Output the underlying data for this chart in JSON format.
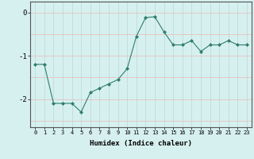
{
  "x": [
    0,
    1,
    2,
    3,
    4,
    5,
    6,
    7,
    8,
    9,
    10,
    11,
    12,
    13,
    14,
    15,
    16,
    17,
    18,
    19,
    20,
    21,
    22,
    23
  ],
  "y": [
    -1.2,
    -1.2,
    -2.1,
    -2.1,
    -2.1,
    -2.3,
    -1.85,
    -1.75,
    -1.65,
    -1.55,
    -1.3,
    -0.55,
    -0.12,
    -0.1,
    -0.45,
    -0.75,
    -0.75,
    -0.65,
    -0.9,
    -0.75,
    -0.75,
    -0.65,
    -0.75,
    -0.75
  ],
  "xlabel": "Humidex (Indice chaleur)",
  "xlim": [
    -0.5,
    23.5
  ],
  "ylim": [
    -2.65,
    0.25
  ],
  "yticks": [
    -2,
    -1,
    0
  ],
  "xticks": [
    0,
    1,
    2,
    3,
    4,
    5,
    6,
    7,
    8,
    9,
    10,
    11,
    12,
    13,
    14,
    15,
    16,
    17,
    18,
    19,
    20,
    21,
    22,
    23
  ],
  "line_color": "#2e7d6e",
  "marker_color": "#2e7d6e",
  "bg_color": "#d6f0ef",
  "grid_color": "#b8d8d5",
  "grid_color_red": "#e8b8b8"
}
